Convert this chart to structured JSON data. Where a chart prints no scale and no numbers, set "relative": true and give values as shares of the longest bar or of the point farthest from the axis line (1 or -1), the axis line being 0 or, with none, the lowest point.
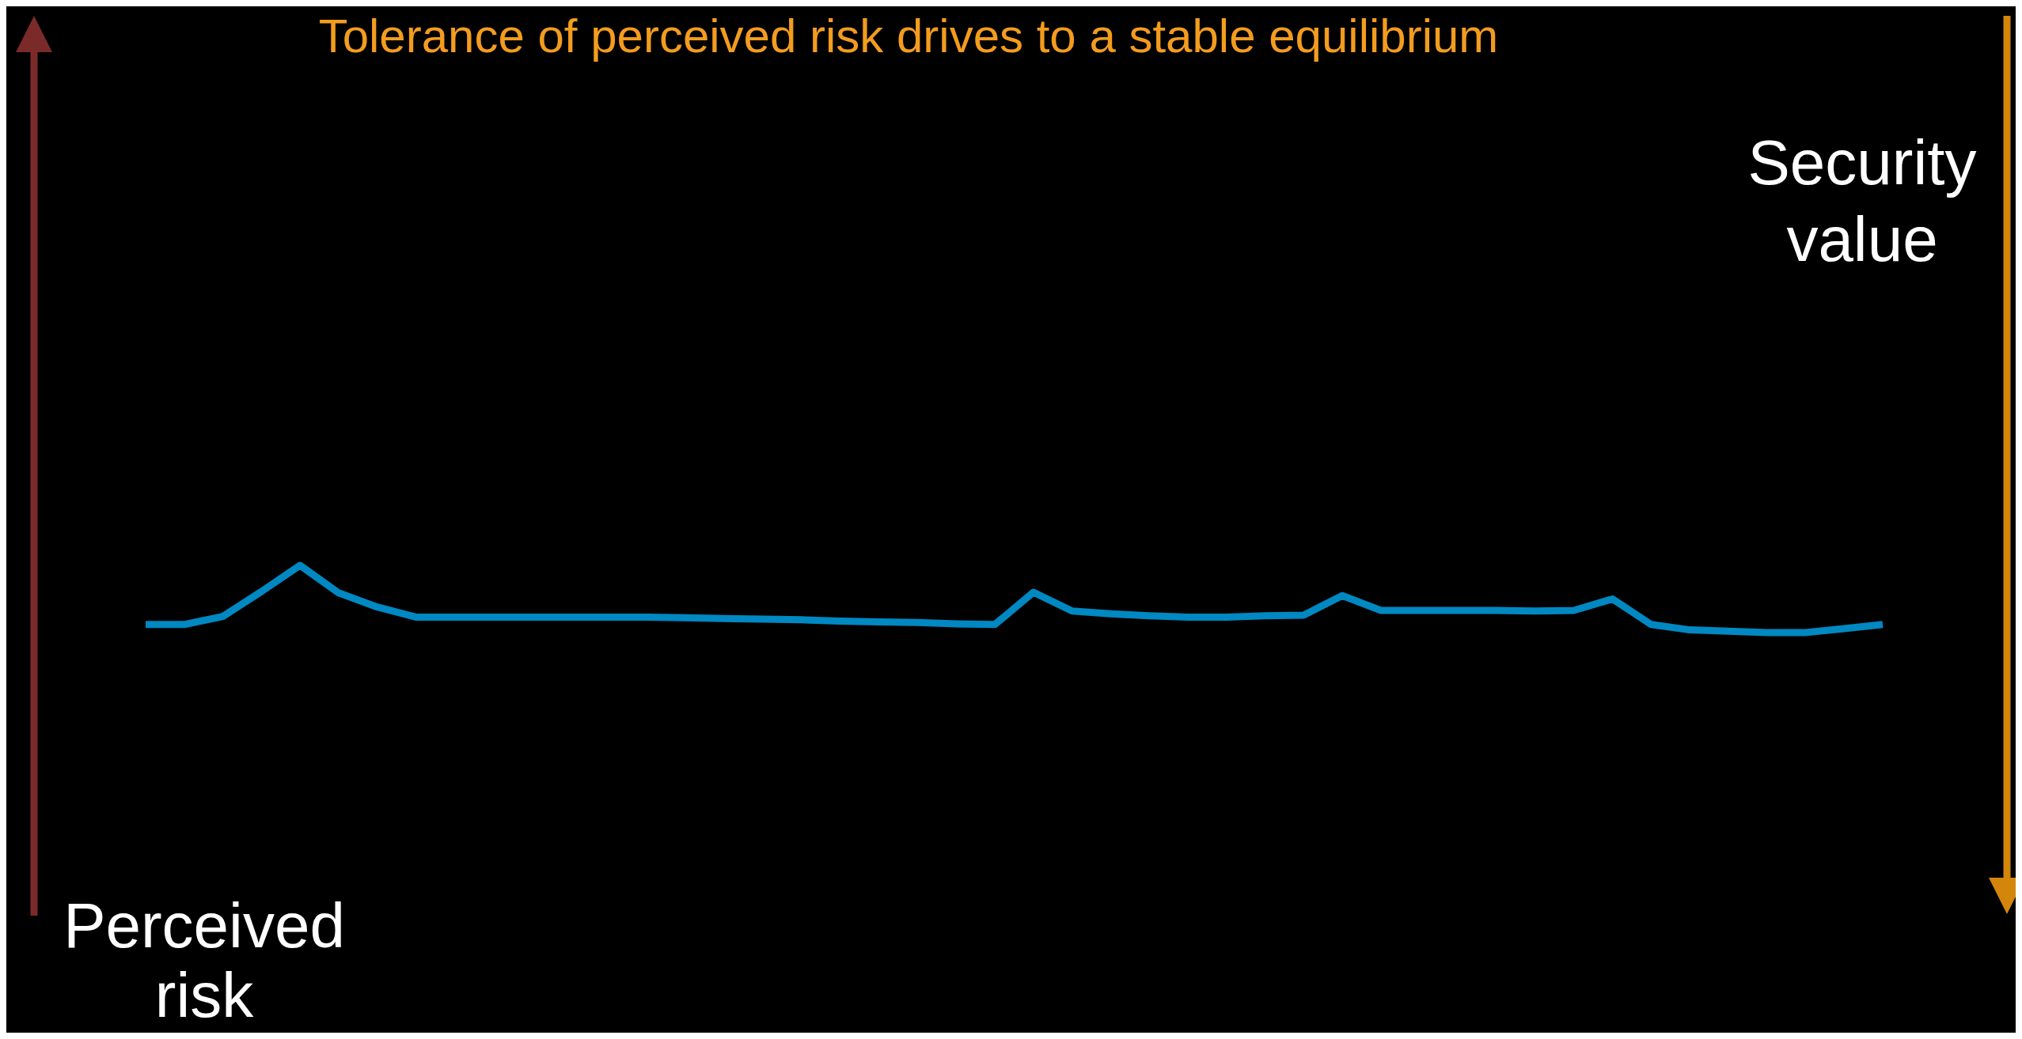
{
  "chart_data": {
    "type": "line",
    "title": "Tolerance of perceived risk drives to a stable equilibrium",
    "annotations": [
      "Perceived risk",
      "Security value"
    ],
    "relative": true,
    "marker": "none",
    "line_style": "solid",
    "categories": [
      null,
      null,
      null,
      null,
      null,
      null,
      null,
      null,
      null,
      null,
      null,
      null,
      null,
      null,
      null,
      null,
      null,
      null,
      null,
      null,
      null,
      null,
      null,
      null,
      null,
      null,
      null,
      null,
      null,
      null,
      null,
      null,
      null,
      null,
      null,
      null,
      null,
      null,
      null,
      null,
      null,
      null,
      null,
      null,
      null,
      null
    ],
    "series": [
      {
        "color": "#0088c2",
        "values": [
          0.12,
          0.12,
          0.24,
          0.61,
          1,
          0.59,
          0.38,
          0.23,
          0.23,
          0.23,
          0.23,
          0.23,
          0.23,
          0.23,
          0.22,
          0.21,
          0.2,
          0.19,
          0.17,
          0.16,
          0.15,
          0.13,
          0.12,
          0.6,
          0.32,
          0.28,
          0.25,
          0.23,
          0.23,
          0.25,
          0.26,
          0.55,
          0.33,
          0.33,
          0.33,
          0.33,
          0.32,
          0.33,
          0.5,
          0.12,
          0.04,
          0.02,
          0,
          0,
          0.06,
          0.12
        ]
      }
    ]
  }
}
